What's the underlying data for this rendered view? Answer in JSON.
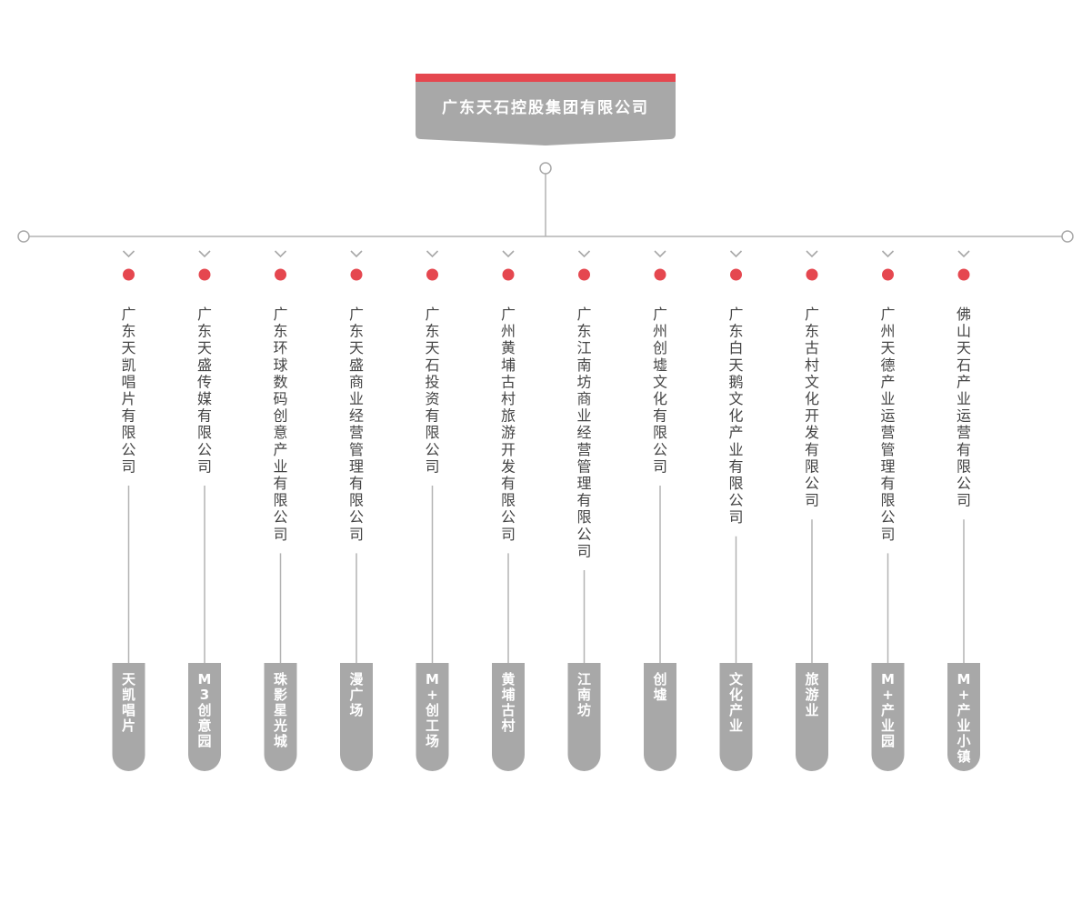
{
  "root": {
    "title": "广东天石控股集团有限公司"
  },
  "colors": {
    "accent": "#e5474f",
    "gray": "#a8a8a8",
    "line": "#b3b3b3",
    "text": "#444444"
  },
  "companies": [
    {
      "name": "广东天凯唱片有限公司",
      "brand": "天凯唱片"
    },
    {
      "name": "广东天盛传媒有限公司",
      "brand": "M3创意园"
    },
    {
      "name": "广东环球数码创意产业有限公司",
      "brand": "珠影星光城"
    },
    {
      "name": "广东天盛商业经营管理有限公司",
      "brand": "漫广场"
    },
    {
      "name": "广东天石投资有限公司",
      "brand": "M+创工场"
    },
    {
      "name": "广州黄埔古村旅游开发有限公司",
      "brand": "黄埔古村"
    },
    {
      "name": "广东江南坊商业经营管理有限公司",
      "brand": "江南坊"
    },
    {
      "name": "广州创墟文化有限公司",
      "brand": "创墟"
    },
    {
      "name": "广东白天鹅文化产业有限公司",
      "brand": "文化产业"
    },
    {
      "name": "广东古村文化开发有限公司",
      "brand": "旅游业"
    },
    {
      "name": "广州天德产业运营管理有限公司",
      "brand": "M+产业园"
    },
    {
      "name": "佛山天石产业运营有限公司",
      "brand": "M+产业小镇"
    }
  ]
}
